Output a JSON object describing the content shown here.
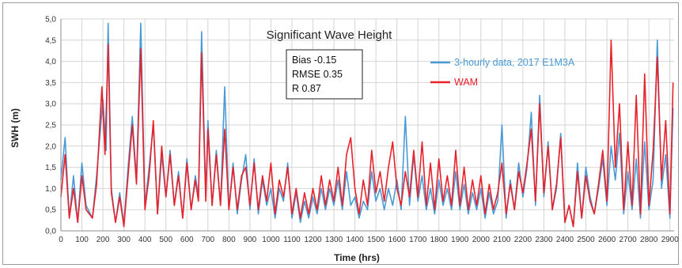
{
  "chart_data": {
    "type": "line",
    "title": "Significant Wave Height",
    "xlabel": "Time (hrs)",
    "ylabel": "SWH (m)",
    "xlim": [
      0,
      2920
    ],
    "ylim": [
      0,
      5
    ],
    "x_ticks": [
      "0",
      "100",
      "200",
      "300",
      "400",
      "500",
      "600",
      "700",
      "800",
      "900",
      "1000",
      "1100",
      "1200",
      "1300",
      "1400",
      "1500",
      "1600",
      "1700",
      "1800",
      "1900",
      "2000",
      "2100",
      "2200",
      "2300",
      "2400",
      "2500",
      "2600",
      "2700",
      "2800",
      "2900"
    ],
    "y_ticks": [
      "0,0",
      "0,5",
      "1,0",
      "1,5",
      "2,0",
      "2,5",
      "3,0",
      "3,5",
      "4,0",
      "4,5",
      "5,0"
    ],
    "grid": true,
    "legend_position": "top-right",
    "stats_box": [
      "Bias -0.15",
      "RMSE 0.35",
      "R 0.87"
    ],
    "series": [
      {
        "name": "3-hourly data, 2017 E1M3A",
        "color": "#4a9ad6",
        "points": [
          [
            0,
            1.2
          ],
          [
            20,
            2.2
          ],
          [
            40,
            0.3
          ],
          [
            60,
            1.3
          ],
          [
            80,
            0.2
          ],
          [
            100,
            1.6
          ],
          [
            120,
            0.6
          ],
          [
            150,
            0.3
          ],
          [
            170,
            1.3
          ],
          [
            200,
            3.1
          ],
          [
            215,
            1.9
          ],
          [
            225,
            4.9
          ],
          [
            240,
            1.0
          ],
          [
            260,
            0.2
          ],
          [
            280,
            0.9
          ],
          [
            300,
            0.15
          ],
          [
            320,
            1.5
          ],
          [
            340,
            2.7
          ],
          [
            360,
            1.2
          ],
          [
            380,
            4.9
          ],
          [
            400,
            0.6
          ],
          [
            420,
            1.5
          ],
          [
            440,
            2.5
          ],
          [
            460,
            0.4
          ],
          [
            480,
            1.8
          ],
          [
            500,
            0.8
          ],
          [
            520,
            1.9
          ],
          [
            540,
            0.6
          ],
          [
            560,
            1.4
          ],
          [
            580,
            0.3
          ],
          [
            600,
            1.7
          ],
          [
            620,
            0.5
          ],
          [
            640,
            1.3
          ],
          [
            655,
            0.8
          ],
          [
            670,
            4.7
          ],
          [
            690,
            0.8
          ],
          [
            700,
            2.6
          ],
          [
            720,
            0.6
          ],
          [
            740,
            1.9
          ],
          [
            760,
            0.6
          ],
          [
            780,
            3.4
          ],
          [
            800,
            0.5
          ],
          [
            820,
            1.6
          ],
          [
            840,
            0.4
          ],
          [
            860,
            1.2
          ],
          [
            880,
            1.8
          ],
          [
            900,
            0.5
          ],
          [
            920,
            1.7
          ],
          [
            940,
            0.4
          ],
          [
            960,
            1.2
          ],
          [
            980,
            0.6
          ],
          [
            1000,
            1.0
          ],
          [
            1020,
            0.3
          ],
          [
            1040,
            1.0
          ],
          [
            1060,
            0.7
          ],
          [
            1080,
            1.6
          ],
          [
            1100,
            0.3
          ],
          [
            1120,
            0.9
          ],
          [
            1140,
            0.2
          ],
          [
            1160,
            0.7
          ],
          [
            1180,
            0.3
          ],
          [
            1200,
            0.8
          ],
          [
            1220,
            0.4
          ],
          [
            1240,
            1.0
          ],
          [
            1260,
            0.5
          ],
          [
            1280,
            1.0
          ],
          [
            1300,
            0.6
          ],
          [
            1320,
            1.2
          ],
          [
            1340,
            0.5
          ],
          [
            1360,
            1.4
          ],
          [
            1380,
            0.6
          ],
          [
            1400,
            0.8
          ],
          [
            1420,
            0.3
          ],
          [
            1440,
            0.7
          ],
          [
            1460,
            0.5
          ],
          [
            1480,
            1.4
          ],
          [
            1500,
            0.7
          ],
          [
            1520,
            1.0
          ],
          [
            1540,
            0.5
          ],
          [
            1560,
            1.0
          ],
          [
            1580,
            0.6
          ],
          [
            1600,
            1.2
          ],
          [
            1620,
            0.5
          ],
          [
            1640,
            2.7
          ],
          [
            1660,
            0.6
          ],
          [
            1680,
            1.8
          ],
          [
            1700,
            0.7
          ],
          [
            1720,
            1.3
          ],
          [
            1740,
            0.5
          ],
          [
            1760,
            1.0
          ],
          [
            1780,
            0.4
          ],
          [
            1800,
            1.2
          ],
          [
            1820,
            0.6
          ],
          [
            1840,
            1.0
          ],
          [
            1860,
            0.5
          ],
          [
            1880,
            1.4
          ],
          [
            1900,
            0.5
          ],
          [
            1920,
            1.1
          ],
          [
            1940,
            0.4
          ],
          [
            1960,
            0.9
          ],
          [
            1980,
            0.5
          ],
          [
            2000,
            1.0
          ],
          [
            2020,
            0.3
          ],
          [
            2040,
            0.9
          ],
          [
            2060,
            0.4
          ],
          [
            2080,
            0.7
          ],
          [
            2100,
            2.5
          ],
          [
            2120,
            0.3
          ],
          [
            2140,
            1.2
          ],
          [
            2160,
            0.5
          ],
          [
            2180,
            1.6
          ],
          [
            2200,
            0.8
          ],
          [
            2220,
            1.5
          ],
          [
            2240,
            2.8
          ],
          [
            2260,
            0.6
          ],
          [
            2280,
            3.2
          ],
          [
            2300,
            0.8
          ],
          [
            2320,
            2.1
          ],
          [
            2340,
            0.5
          ],
          [
            2360,
            1.0
          ],
          [
            2380,
            2.3
          ],
          [
            2400,
            0.2
          ],
          [
            2420,
            0.6
          ],
          [
            2440,
            0.1
          ],
          [
            2460,
            1.6
          ],
          [
            2480,
            0.3
          ],
          [
            2500,
            1.5
          ],
          [
            2520,
            0.8
          ],
          [
            2540,
            0.4
          ],
          [
            2560,
            1.0
          ],
          [
            2580,
            1.7
          ],
          [
            2600,
            0.6
          ],
          [
            2620,
            2.0
          ],
          [
            2640,
            1.2
          ],
          [
            2660,
            2.3
          ],
          [
            2680,
            0.4
          ],
          [
            2700,
            1.4
          ],
          [
            2720,
            0.5
          ],
          [
            2740,
            1.7
          ],
          [
            2760,
            0.3
          ],
          [
            2780,
            2.1
          ],
          [
            2800,
            0.5
          ],
          [
            2820,
            1.2
          ],
          [
            2840,
            4.5
          ],
          [
            2860,
            1.0
          ],
          [
            2880,
            1.8
          ],
          [
            2900,
            0.3
          ],
          [
            2915,
            2.9
          ]
        ]
      },
      {
        "name": "WAM",
        "color": "#e8212a",
        "points": [
          [
            0,
            0.8
          ],
          [
            20,
            1.8
          ],
          [
            40,
            0.3
          ],
          [
            60,
            1.0
          ],
          [
            80,
            0.2
          ],
          [
            100,
            1.3
          ],
          [
            120,
            0.5
          ],
          [
            150,
            0.3
          ],
          [
            170,
            1.1
          ],
          [
            195,
            3.4
          ],
          [
            210,
            1.8
          ],
          [
            225,
            4.4
          ],
          [
            240,
            0.9
          ],
          [
            260,
            0.2
          ],
          [
            280,
            0.8
          ],
          [
            300,
            0.1
          ],
          [
            320,
            1.3
          ],
          [
            340,
            2.5
          ],
          [
            360,
            1.1
          ],
          [
            380,
            4.3
          ],
          [
            400,
            0.5
          ],
          [
            420,
            1.3
          ],
          [
            440,
            2.6
          ],
          [
            460,
            0.4
          ],
          [
            480,
            2.0
          ],
          [
            500,
            0.8
          ],
          [
            520,
            1.8
          ],
          [
            540,
            0.6
          ],
          [
            560,
            1.3
          ],
          [
            580,
            0.3
          ],
          [
            600,
            1.6
          ],
          [
            620,
            0.5
          ],
          [
            640,
            1.2
          ],
          [
            655,
            0.7
          ],
          [
            670,
            4.2
          ],
          [
            690,
            0.7
          ],
          [
            700,
            2.4
          ],
          [
            720,
            0.6
          ],
          [
            740,
            1.8
          ],
          [
            760,
            0.6
          ],
          [
            780,
            2.4
          ],
          [
            800,
            0.5
          ],
          [
            820,
            1.5
          ],
          [
            840,
            0.5
          ],
          [
            860,
            1.3
          ],
          [
            880,
            1.5
          ],
          [
            900,
            0.6
          ],
          [
            920,
            1.6
          ],
          [
            940,
            0.5
          ],
          [
            960,
            1.3
          ],
          [
            980,
            0.7
          ],
          [
            1000,
            1.6
          ],
          [
            1020,
            0.4
          ],
          [
            1040,
            1.2
          ],
          [
            1060,
            0.8
          ],
          [
            1080,
            1.5
          ],
          [
            1100,
            0.4
          ],
          [
            1120,
            1.0
          ],
          [
            1140,
            0.3
          ],
          [
            1160,
            0.9
          ],
          [
            1180,
            0.4
          ],
          [
            1200,
            1.0
          ],
          [
            1220,
            0.5
          ],
          [
            1240,
            1.3
          ],
          [
            1260,
            0.6
          ],
          [
            1280,
            1.2
          ],
          [
            1300,
            0.7
          ],
          [
            1320,
            1.5
          ],
          [
            1340,
            0.6
          ],
          [
            1360,
            1.8
          ],
          [
            1380,
            2.2
          ],
          [
            1400,
            1.0
          ],
          [
            1420,
            0.4
          ],
          [
            1440,
            1.2
          ],
          [
            1460,
            0.6
          ],
          [
            1480,
            1.9
          ],
          [
            1500,
            0.9
          ],
          [
            1520,
            1.4
          ],
          [
            1540,
            0.7
          ],
          [
            1560,
            1.5
          ],
          [
            1580,
            2.1
          ],
          [
            1600,
            1.0
          ],
          [
            1620,
            0.6
          ],
          [
            1640,
            1.4
          ],
          [
            1660,
            0.8
          ],
          [
            1680,
            1.9
          ],
          [
            1700,
            0.8
          ],
          [
            1720,
            2.1
          ],
          [
            1740,
            0.6
          ],
          [
            1760,
            1.6
          ],
          [
            1780,
            0.5
          ],
          [
            1800,
            1.7
          ],
          [
            1820,
            0.7
          ],
          [
            1840,
            1.3
          ],
          [
            1860,
            0.6
          ],
          [
            1880,
            1.9
          ],
          [
            1900,
            0.6
          ],
          [
            1920,
            1.5
          ],
          [
            1940,
            0.5
          ],
          [
            1960,
            1.2
          ],
          [
            1980,
            0.6
          ],
          [
            2000,
            1.3
          ],
          [
            2020,
            0.4
          ],
          [
            2040,
            1.1
          ],
          [
            2060,
            0.5
          ],
          [
            2080,
            0.9
          ],
          [
            2100,
            1.6
          ],
          [
            2120,
            0.4
          ],
          [
            2140,
            1.1
          ],
          [
            2160,
            0.5
          ],
          [
            2180,
            1.4
          ],
          [
            2200,
            0.9
          ],
          [
            2220,
            1.6
          ],
          [
            2240,
            2.4
          ],
          [
            2260,
            0.7
          ],
          [
            2280,
            3.0
          ],
          [
            2300,
            0.9
          ],
          [
            2320,
            2.0
          ],
          [
            2340,
            0.5
          ],
          [
            2360,
            1.1
          ],
          [
            2380,
            2.2
          ],
          [
            2400,
            0.2
          ],
          [
            2420,
            0.6
          ],
          [
            2440,
            0.1
          ],
          [
            2460,
            1.4
          ],
          [
            2480,
            0.3
          ],
          [
            2500,
            1.3
          ],
          [
            2520,
            0.7
          ],
          [
            2540,
            0.4
          ],
          [
            2560,
            1.1
          ],
          [
            2580,
            1.9
          ],
          [
            2600,
            0.7
          ],
          [
            2620,
            4.5
          ],
          [
            2640,
            1.5
          ],
          [
            2660,
            3.0
          ],
          [
            2680,
            0.5
          ],
          [
            2700,
            2.1
          ],
          [
            2720,
            0.6
          ],
          [
            2740,
            3.2
          ],
          [
            2760,
            0.4
          ],
          [
            2780,
            3.7
          ],
          [
            2800,
            0.6
          ],
          [
            2820,
            1.9
          ],
          [
            2840,
            4.1
          ],
          [
            2860,
            1.2
          ],
          [
            2880,
            2.6
          ],
          [
            2900,
            0.4
          ],
          [
            2915,
            3.5
          ]
        ]
      }
    ]
  }
}
